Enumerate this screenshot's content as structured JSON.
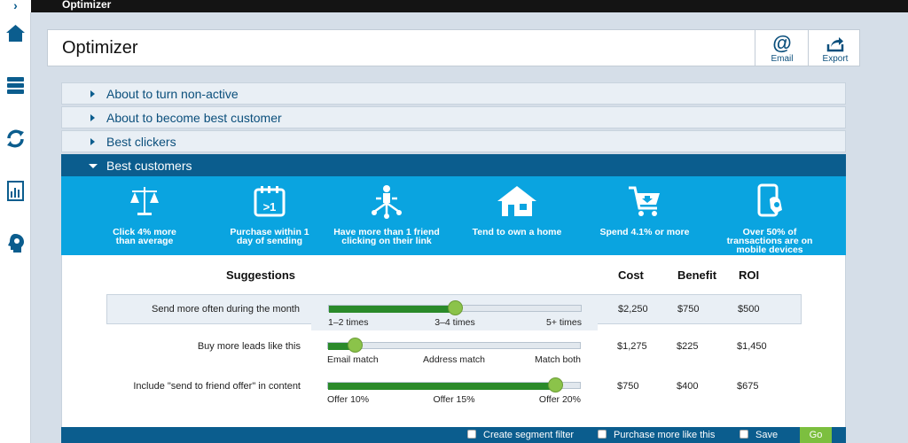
{
  "app": {
    "title": "Optimizer",
    "rail_toggle": "›"
  },
  "rail": [
    "home-icon",
    "server-icon",
    "refresh-icon",
    "report-icon",
    "profile-icon"
  ],
  "header": {
    "title": "Optimizer",
    "email_label": "Email",
    "export_label": "Export"
  },
  "accordion": [
    {
      "label": "About to turn non-active",
      "open": false
    },
    {
      "label": "About to become best customer",
      "open": false
    },
    {
      "label": "Best clickers",
      "open": false
    },
    {
      "label": "Best customers",
      "open": true
    }
  ],
  "features": [
    {
      "icon": "scales-icon",
      "line1": "Click 4% more",
      "line2": "than average",
      "line3": ""
    },
    {
      "icon": "calendar-icon",
      "line1": "Purchase within 1",
      "line2": "day of sending",
      "line3": ""
    },
    {
      "icon": "network-person-icon",
      "line1": "Have more than 1 friend",
      "line2": "clicking on their link",
      "line3": ""
    },
    {
      "icon": "house-icon",
      "line1": "Tend to own a home",
      "line2": "",
      "line3": ""
    },
    {
      "icon": "cart-icon",
      "line1": "Spend 4.1% or more",
      "line2": "",
      "line3": ""
    },
    {
      "icon": "mobile-icon",
      "line1": "Over 50% of",
      "line2": "transactions are on",
      "line3": "mobile devices"
    }
  ],
  "table": {
    "headers": {
      "suggestions": "Suggestions",
      "cost": "Cost",
      "benefit": "Benefit",
      "roi": "ROI"
    },
    "rows": [
      {
        "suggestion": "Send more often during the month",
        "ticks": [
          "1–2 times",
          "3–4 times",
          "5+ times"
        ],
        "position": 0.5,
        "cost": "$2,250",
        "benefit": "$750",
        "roi": "$500",
        "highlighted": true
      },
      {
        "suggestion": "Buy more leads like this",
        "ticks": [
          "Email match",
          "Address match",
          "Match both"
        ],
        "position": 0.11,
        "cost": "$1,275",
        "benefit": "$225",
        "roi": "$1,450",
        "highlighted": false
      },
      {
        "suggestion": "Include \"send to friend offer\" in content",
        "ticks": [
          "Offer 10%",
          "Offer 15%",
          "Offer 20%"
        ],
        "position": 0.9,
        "cost": "$750",
        "benefit": "$400",
        "roi": "$675",
        "highlighted": false
      }
    ]
  },
  "footer": {
    "create_segment": "Create segment filter",
    "purchase_more": "Purchase more like this",
    "save": "Save",
    "go": "Go"
  }
}
